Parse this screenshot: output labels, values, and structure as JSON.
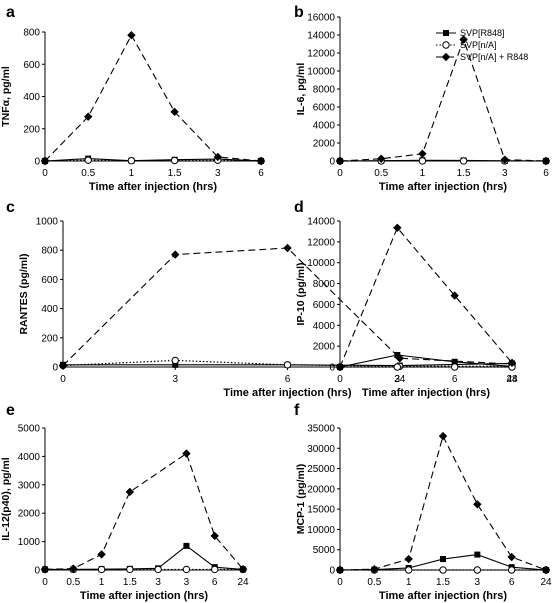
{
  "legend": {
    "entries": [
      {
        "name": "SVP[R848]",
        "marker": "square-filled",
        "dash": "solid"
      },
      {
        "name": "SVP[n/A]",
        "marker": "circle-open",
        "dash": "dotted"
      },
      {
        "name": "SVP[n/A] + R848",
        "marker": "diamond-filled",
        "dash": "dashed"
      }
    ]
  },
  "chart_data": [
    {
      "panel": "a",
      "type": "line",
      "ylabel": "TNFα, pg/ml",
      "xlabel": "Time after injection (hrs)",
      "categories": [
        "0",
        "0.5",
        "1",
        "1.5",
        "3",
        "6"
      ],
      "ylim": [
        0,
        800
      ],
      "yticks": [
        0,
        200,
        400,
        600,
        800
      ],
      "series": [
        {
          "name": "SVP[R848]",
          "values": [
            0,
            15,
            2,
            8,
            12,
            0
          ]
        },
        {
          "name": "SVP[n/A]",
          "values": [
            0,
            5,
            2,
            3,
            5,
            0
          ]
        },
        {
          "name": "SVP[n/A] + R848",
          "values": [
            0,
            275,
            780,
            305,
            25,
            0
          ]
        }
      ]
    },
    {
      "panel": "b",
      "type": "line",
      "ylabel": "IL-6, pg/ml",
      "xlabel": "Time after injection (hrs)",
      "categories": [
        "0",
        "0.5",
        "1",
        "1.5",
        "3",
        "6"
      ],
      "ylim": [
        0,
        16000
      ],
      "yticks": [
        0,
        2000,
        4000,
        6000,
        8000,
        10000,
        12000,
        14000,
        16000
      ],
      "series": [
        {
          "name": "SVP[R848]",
          "values": [
            0,
            30,
            80,
            60,
            20,
            0
          ]
        },
        {
          "name": "SVP[n/A]",
          "values": [
            0,
            10,
            10,
            10,
            10,
            0
          ]
        },
        {
          "name": "SVP[n/A] + R848",
          "values": [
            0,
            250,
            800,
            13500,
            150,
            0
          ]
        }
      ]
    },
    {
      "panel": "c",
      "type": "line",
      "ylabel": "RANTES (pg/ml)",
      "xlabel": "Time after injection (hrs)",
      "categories": [
        "0",
        "3",
        "6",
        "24",
        "48"
      ],
      "ylim": [
        0,
        1000
      ],
      "yticks": [
        0,
        200,
        400,
        600,
        800,
        1000
      ],
      "series": [
        {
          "name": "SVP[R848]",
          "values": [
            15,
            15,
            15,
            10,
            25
          ]
        },
        {
          "name": "SVP[n/A]",
          "values": [
            10,
            45,
            15,
            5,
            5
          ]
        },
        {
          "name": "SVP[n/A] + R848",
          "values": [
            10,
            770,
            815,
            60,
            20
          ]
        }
      ]
    },
    {
      "panel": "d",
      "type": "line",
      "ylabel": "IP-10 (pg/ml)",
      "xlabel": "Time after injection (hrs)",
      "categories": [
        "0",
        "3",
        "6",
        "24"
      ],
      "ylim": [
        0,
        14000
      ],
      "yticks": [
        0,
        2000,
        4000,
        6000,
        8000,
        10000,
        12000,
        14000
      ],
      "series": [
        {
          "name": "SVP[R848]",
          "values": [
            0,
            1150,
            500,
            50
          ]
        },
        {
          "name": "SVP[n/A]",
          "values": [
            0,
            0,
            0,
            0
          ]
        },
        {
          "name": "SVP[n/A] + R848",
          "values": [
            0,
            13350,
            6850,
            400
          ]
        }
      ]
    },
    {
      "panel": "e",
      "type": "line",
      "ylabel": "IL-12(p40), pg/ml",
      "xlabel": "Time after injection (hrs)",
      "categories": [
        "0",
        "0.5",
        "1",
        "1.5",
        "3",
        "3",
        "6",
        "24"
      ],
      "ylim": [
        0,
        5000
      ],
      "yticks": [
        0,
        1000,
        2000,
        3000,
        4000,
        5000
      ],
      "series": [
        {
          "name": "SVP[R848]",
          "values": [
            20,
            20,
            30,
            40,
            60,
            850,
            100,
            20
          ]
        },
        {
          "name": "SVP[n/A]",
          "values": [
            20,
            20,
            20,
            20,
            20,
            20,
            20,
            20
          ]
        },
        {
          "name": "SVP[n/A] + R848",
          "values": [
            20,
            50,
            550,
            2750,
            null,
            4100,
            1200,
            30
          ]
        }
      ]
    },
    {
      "panel": "f",
      "type": "line",
      "ylabel": "MCP-1 (pg/ml)",
      "xlabel": "Time after injection (hrs)",
      "categories": [
        "0",
        "0.5",
        "1",
        "1.5",
        "3",
        "6",
        "24"
      ],
      "ylim": [
        0,
        35000
      ],
      "yticks": [
        0,
        5000,
        10000,
        15000,
        20000,
        25000,
        30000,
        35000
      ],
      "series": [
        {
          "name": "SVP[R848]",
          "values": [
            0,
            100,
            500,
            2700,
            3800,
            700,
            0
          ]
        },
        {
          "name": "SVP[n/A]",
          "values": [
            0,
            0,
            0,
            0,
            0,
            0,
            0
          ]
        },
        {
          "name": "SVP[n/A] + R848",
          "values": [
            0,
            200,
            2700,
            33000,
            16200,
            3200,
            0
          ]
        }
      ]
    }
  ]
}
